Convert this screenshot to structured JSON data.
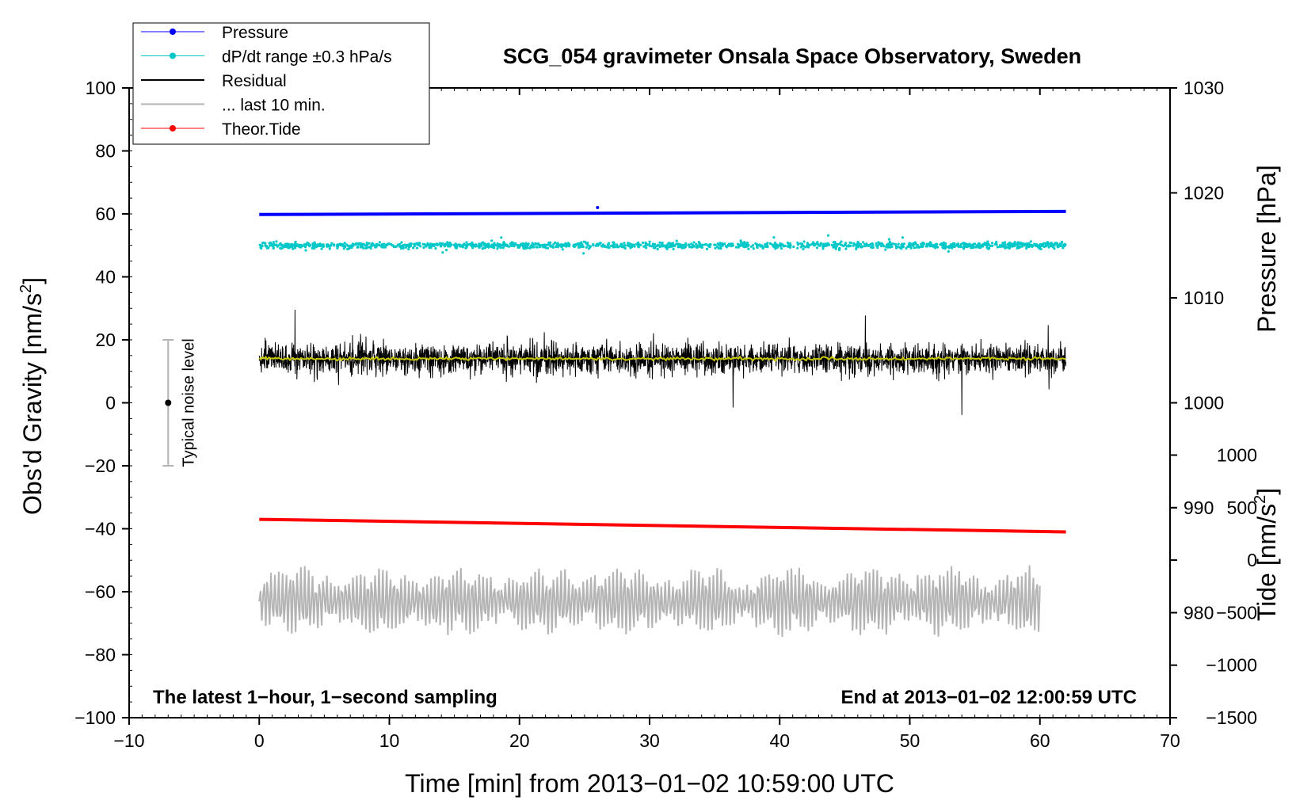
{
  "chart_data": {
    "type": "line",
    "title": "SCG_054 gravimeter Onsala Space Observatory, Sweden",
    "xlabel": "Time [min] from 2013−01−02 10:59:00 UTC",
    "ylabel_left_main": "Obs'd Gravity [nm/s",
    "ylabel_left_sup": "2",
    "ylabel_left_end": "]",
    "ylabel_right_top": "Pressure [hPa]",
    "ylabel_right_bottom_main": "Tide [nm/s",
    "ylabel_right_bottom_sup": "2",
    "ylabel_right_bottom_end": "]",
    "note_left": "The latest 1−hour, 1−second sampling",
    "note_right": "End at 2013−01−02 12:00:59 UTC",
    "noise_label": "Typical noise level",
    "xlim": [
      -10,
      70
    ],
    "ylim": [
      -100,
      100
    ],
    "x_ticks": [
      "−10",
      "0",
      "10",
      "20",
      "30",
      "40",
      "50",
      "60",
      "70"
    ],
    "y_ticks_left": [
      "100",
      "80",
      "60",
      "40",
      "20",
      "0",
      "−20",
      "−40",
      "−60",
      "−80",
      "−100"
    ],
    "pressure_axis": {
      "range": [
        970,
        1030
      ],
      "ticks": [
        "1030",
        "1020",
        "1010",
        "1000",
        "990",
        "980"
      ]
    },
    "tide_axis": {
      "range": [
        -1500,
        1000
      ],
      "ticks": [
        "1000",
        "500",
        "0",
        "−500",
        "−1000",
        "−1500"
      ]
    },
    "legend": [
      {
        "label": "Pressure",
        "color": "#0000ff",
        "marker": true
      },
      {
        "label": "dP/dt range ±0.3 hPa/s",
        "color": "#00c8c8",
        "marker": true
      },
      {
        "label": "Residual",
        "color": "#000000",
        "marker": false
      },
      {
        "label": "... last 10 min.",
        "color": "#b4b4b4",
        "marker": false
      },
      {
        "label": "Theor.Tide",
        "color": "#ff0000",
        "marker": true
      }
    ],
    "series": [
      {
        "name": "Pressure",
        "color": "#0000ff",
        "x_range": [
          0,
          62
        ],
        "y_start": 59.8,
        "y_end": 60.8
      },
      {
        "name": "dP/dt range ±0.3 hPa/s",
        "color": "#00c8c8",
        "x_range": [
          0,
          62
        ],
        "y_center": 50,
        "spread": 2.5
      },
      {
        "name": "Residual",
        "color": "#000000",
        "x_range": [
          0,
          62
        ],
        "y_center": 14,
        "spread": 12
      },
      {
        "name": "Residual smoothed",
        "color": "#c8c800",
        "x_range": [
          0,
          62
        ],
        "y_center": 14,
        "spread": 1
      },
      {
        "name": "... last 10 min.",
        "color": "#b4b4b4",
        "x_range": [
          0,
          60
        ],
        "y_center": -63,
        "spread": 10
      },
      {
        "name": "Theor.Tide",
        "color": "#ff0000",
        "x_range": [
          0,
          62
        ],
        "y_start": -37,
        "y_end": -41
      }
    ],
    "noise_bar": {
      "x": -7,
      "y_center": 0,
      "y_low": -20,
      "y_high": 20
    }
  }
}
